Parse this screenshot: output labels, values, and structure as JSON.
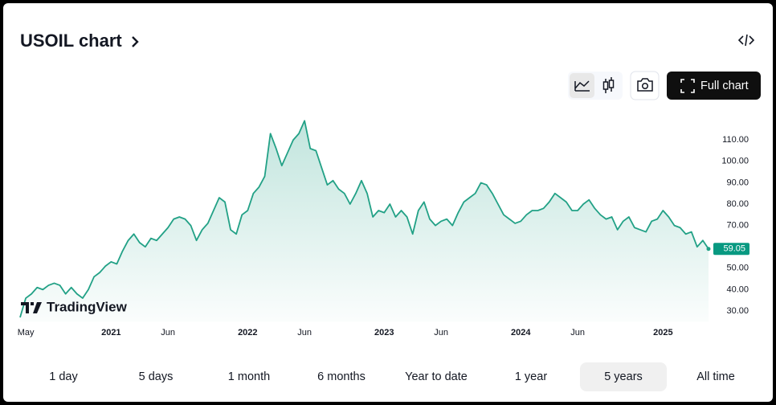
{
  "header": {
    "title": "USOIL chart",
    "full_chart": "Full chart"
  },
  "watermark": "TradingView",
  "chart_data": {
    "type": "line",
    "color": "#22a186",
    "label_color": "#089981",
    "categories": [
      null,
      "May",
      null,
      null,
      null,
      null,
      null,
      null,
      null,
      null,
      null,
      null,
      null,
      null,
      null,
      null,
      "2021",
      null,
      null,
      null,
      null,
      null,
      null,
      null,
      null,
      null,
      "Jun",
      null,
      null,
      null,
      null,
      null,
      null,
      null,
      null,
      null,
      null,
      null,
      null,
      null,
      "2022",
      null,
      null,
      null,
      null,
      null,
      null,
      null,
      null,
      null,
      "Jun",
      null,
      null,
      null,
      null,
      null,
      null,
      null,
      null,
      null,
      null,
      null,
      null,
      null,
      "2023",
      null,
      null,
      null,
      null,
      null,
      null,
      null,
      null,
      null,
      "Jun",
      null,
      null,
      null,
      null,
      null,
      null,
      null,
      null,
      null,
      null,
      null,
      null,
      null,
      "2024",
      null,
      null,
      null,
      null,
      null,
      null,
      null,
      null,
      null,
      "Jun",
      null,
      null,
      null,
      null,
      null,
      null,
      null,
      null,
      null,
      null,
      null,
      null,
      null,
      null,
      "2025",
      null,
      null,
      null,
      null,
      null,
      null,
      null,
      null
    ],
    "values": [
      27,
      36,
      38,
      41,
      40,
      42,
      43,
      42,
      38,
      41,
      38,
      36,
      40,
      46,
      48,
      51,
      53,
      52,
      58,
      63,
      66,
      62,
      60,
      64,
      63,
      66,
      69,
      73,
      74,
      73,
      70,
      63,
      68,
      71,
      77,
      83,
      81,
      68,
      66,
      75,
      77,
      85,
      88,
      93,
      113,
      106,
      98,
      104,
      110,
      113,
      119,
      106,
      105,
      97,
      89,
      91,
      87,
      85,
      80,
      85,
      91,
      85,
      74,
      77,
      76,
      80,
      74,
      77,
      74,
      66,
      77,
      81,
      73,
      70,
      72,
      73,
      70,
      76,
      81,
      83,
      85,
      90,
      89,
      85,
      80,
      75,
      73,
      71,
      72,
      75,
      77,
      77,
      78,
      81,
      85,
      83,
      81,
      77,
      77,
      80,
      82,
      78,
      75,
      73,
      74,
      68,
      72,
      74,
      69,
      68,
      67,
      72,
      73,
      77,
      74,
      70,
      69,
      66,
      67,
      60,
      63,
      59.05
    ],
    "ylim": [
      25,
      122
    ],
    "yticks": [
      {
        "value": 30,
        "label": "30.00"
      },
      {
        "value": 40,
        "label": "40.00"
      },
      {
        "value": 50,
        "label": "50.00"
      },
      {
        "value": 60,
        "label": "60.00"
      },
      {
        "value": 70,
        "label": "70.00"
      },
      {
        "value": 80,
        "label": "80.00"
      },
      {
        "value": 90,
        "label": "90.00"
      },
      {
        "value": 100,
        "label": "100.00"
      },
      {
        "value": 110,
        "label": "110.00"
      }
    ],
    "grid": false
  },
  "ranges": [
    "1 day",
    "5 days",
    "1 month",
    "6 months",
    "Year to date",
    "1 year",
    "5 years",
    "All time"
  ],
  "selected_range": 6
}
